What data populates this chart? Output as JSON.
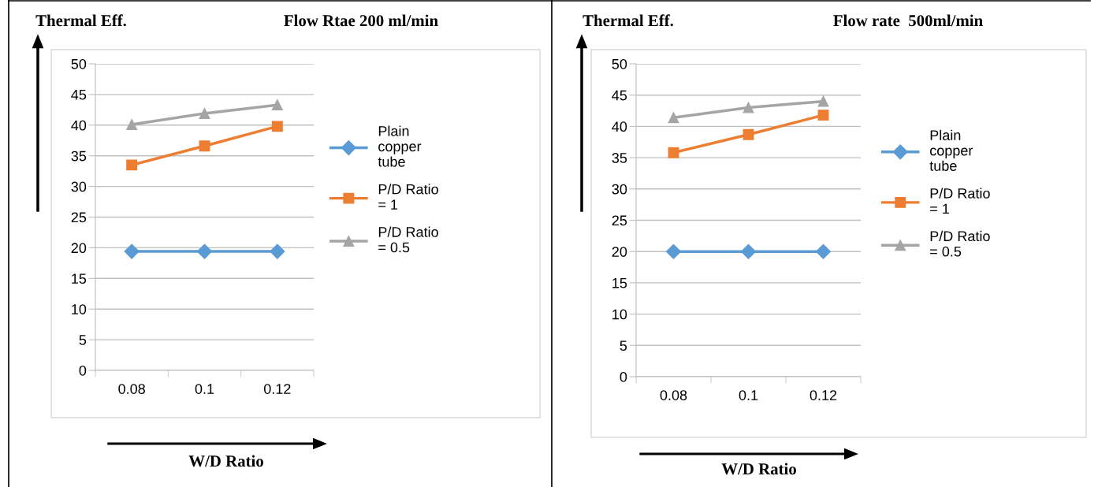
{
  "chart_data": [
    {
      "type": "line",
      "title": "Flow Rtae 200 ml/min",
      "ylabel": "Thermal Eff.",
      "xlabel": "W/D Ratio",
      "categories": [
        "0.08",
        "0.1",
        "0.12"
      ],
      "ylim": [
        0,
        50
      ],
      "yticks": [
        0,
        5,
        10,
        15,
        20,
        25,
        30,
        35,
        40,
        45,
        50
      ],
      "grid": "y",
      "legend": "right",
      "series": [
        {
          "name": "Plain copper tube",
          "color": "#5b9bd5",
          "marker": "diamond",
          "values": [
            19.4,
            19.4,
            19.4
          ]
        },
        {
          "name": "P/D Ratio = 1",
          "color": "#ed7d31",
          "marker": "square",
          "values": [
            33.5,
            36.6,
            39.8
          ]
        },
        {
          "name": "P/D Ratio = 0.5",
          "color": "#a5a5a5",
          "marker": "triangle",
          "values": [
            40.1,
            41.9,
            43.3
          ]
        }
      ]
    },
    {
      "type": "line",
      "title": "Flow rate  500ml/min",
      "ylabel": "Thermal Eff.",
      "xlabel": "W/D Ratio",
      "categories": [
        "0.08",
        "0.1",
        "0.12"
      ],
      "ylim": [
        0,
        50
      ],
      "yticks": [
        0,
        5,
        10,
        15,
        20,
        25,
        30,
        35,
        40,
        45,
        50
      ],
      "grid": "y",
      "legend": "right",
      "series": [
        {
          "name": "Plain copper tube",
          "color": "#5b9bd5",
          "marker": "diamond",
          "values": [
            20,
            20,
            20
          ]
        },
        {
          "name": "P/D Ratio = 1",
          "color": "#ed7d31",
          "marker": "square",
          "values": [
            35.8,
            38.7,
            41.8
          ]
        },
        {
          "name": "P/D Ratio = 0.5",
          "color": "#a5a5a5",
          "marker": "triangle",
          "values": [
            41.4,
            43.0,
            44.0
          ]
        }
      ]
    }
  ]
}
